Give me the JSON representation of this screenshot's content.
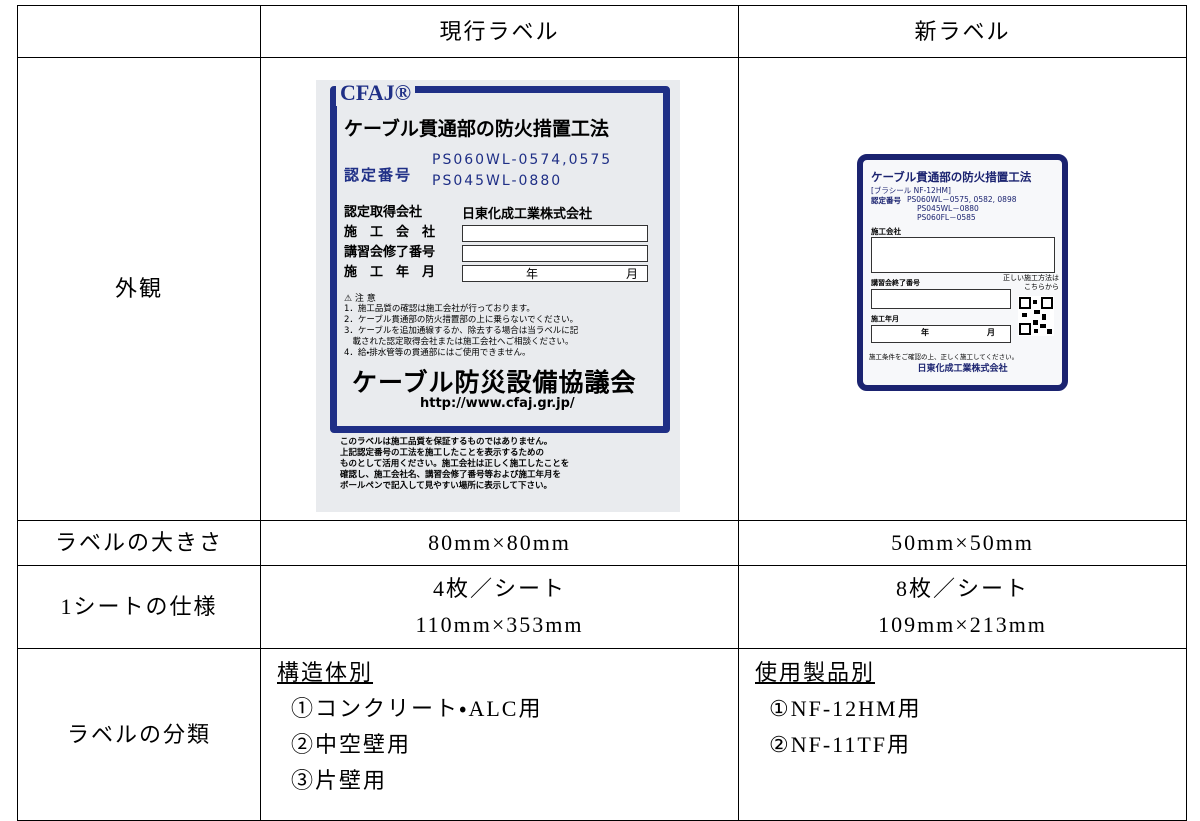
{
  "table": {
    "header": {
      "current": "現行ラベル",
      "new": "新ラベル"
    },
    "appearance": {
      "label": "外観"
    },
    "size": {
      "label": "ラベルの大きさ",
      "current": "80mm×80mm",
      "new": "50mm×50mm"
    },
    "sheet": {
      "label": "1シートの仕様",
      "current": [
        "4枚／シート",
        "110mm×353mm"
      ],
      "new": [
        "8枚／シート",
        "109mm×213mm"
      ]
    },
    "classification": {
      "label": "ラベルの分類",
      "current": {
        "heading": "構造体別",
        "items": [
          "①コンクリート・ALC用",
          "②中空壁用",
          "③片壁用"
        ]
      },
      "new": {
        "heading": "使用製品別",
        "items": [
          "①NF-12HM用",
          "②NF-11TF用"
        ]
      }
    }
  },
  "labels": {
    "current": {
      "brand": "CFAJ®",
      "title": "ケーブル貫通部の防火措置工法",
      "cert_label": "認定番号",
      "cert_numbers": [
        "PS060WL-0574,0575",
        "PS045WL-0880"
      ],
      "fields": [
        "認定取得会社",
        "施　工　会　社",
        "講習会修了番号",
        "施　工　年　月"
      ],
      "company": "日東化成工業株式会社",
      "year": "年",
      "month": "月",
      "caution": "⚠ 注 意",
      "notes": [
        "1．施工品質の確認は施工会社が行っております。",
        "2．ケーブル貫通部の防火措置部の上に乗らないでください。",
        "3．ケーブルを追加通線するか、除去する場合は当ラベルに記",
        "　載された認定取得会社または施工会社へご相談ください。",
        "4．給・排水管等の貫通部にはご使用できません。"
      ],
      "association": "ケーブル防災設備協議会",
      "url": "http://www.cfaj.gr.jp/",
      "footer": [
        "このラベルは施工品質を保証するものではありません。",
        "上記認定番号の工法を施工したことを表示するための",
        "ものとして活用ください。施工会社は正しく施工したことを",
        "確認し、施工会社名、講習会修了番号等および施工年月を",
        "ボールペンで記入して見やすい場所に表示して下さい。"
      ]
    },
    "new": {
      "title": "ケーブル貫通部の防火措置工法",
      "product": "[ブラシール NF-12HM]",
      "cert_label": "認定番号",
      "cert_numbers": [
        "PS060WL－0575, 0582, 0898",
        "PS045WL－0880",
        "PS060FL－0585"
      ],
      "company_field": "施工会社",
      "course_field": "講習会終了番号",
      "qr_note": [
        "正しい施工方法は",
        "こちらから"
      ],
      "date_field": "施工年月",
      "year": "年",
      "month": "月",
      "notice": "施工条件をご確認の上、正しく施工してください。",
      "company": "日東化成工業株式会社"
    }
  }
}
